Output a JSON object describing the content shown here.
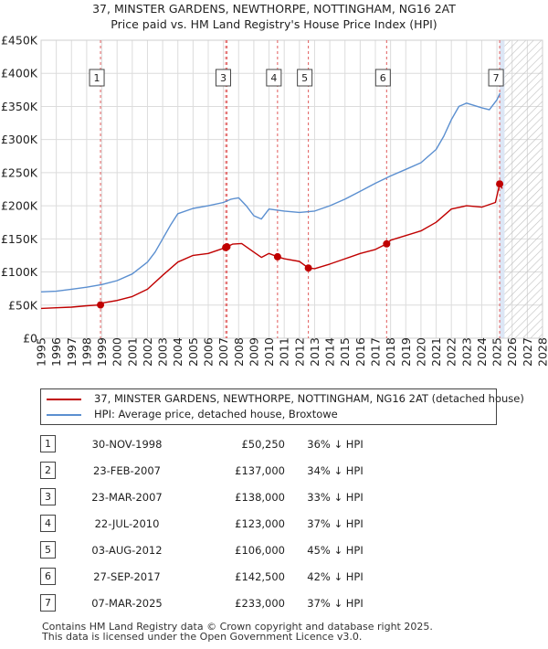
{
  "title": {
    "line1": "37, MINSTER GARDENS, NEWTHORPE, NOTTINGHAM, NG16 2AT",
    "line2": "Price paid vs. HM Land Registry's House Price Index (HPI)"
  },
  "colors": {
    "property": "#c00000",
    "hpi": "#5b8fd0",
    "marker_line": "#e05a5a",
    "future_hatch": "#b8b8b8",
    "shade": "#dce6f5"
  },
  "legend": {
    "property_label": "37, MINSTER GARDENS, NEWTHORPE, NOTTINGHAM, NG16 2AT (detached house)",
    "hpi_label": "HPI: Average price, detached house, Broxtowe"
  },
  "sales": [
    {
      "num": "1",
      "date": "30-NOV-1998",
      "price": "£50,250",
      "hpi_diff": "36% ↓ HPI"
    },
    {
      "num": "2",
      "date": "23-FEB-2007",
      "price": "£137,000",
      "hpi_diff": "34% ↓ HPI"
    },
    {
      "num": "3",
      "date": "23-MAR-2007",
      "price": "£138,000",
      "hpi_diff": "33% ↓ HPI"
    },
    {
      "num": "4",
      "date": "22-JUL-2010",
      "price": "£123,000",
      "hpi_diff": "37% ↓ HPI"
    },
    {
      "num": "5",
      "date": "03-AUG-2012",
      "price": "£106,000",
      "hpi_diff": "45% ↓ HPI"
    },
    {
      "num": "6",
      "date": "27-SEP-2017",
      "price": "£142,500",
      "hpi_diff": "42% ↓ HPI"
    },
    {
      "num": "7",
      "date": "07-MAR-2025",
      "price": "£233,000",
      "hpi_diff": "37% ↓ HPI"
    }
  ],
  "footer": {
    "line1": "Contains HM Land Registry data © Crown copyright and database right 2025.",
    "line2": "This data is licensed under the Open Government Licence v3.0."
  },
  "chart_data": {
    "type": "line",
    "title": "37, MINSTER GARDENS, NEWTHORPE, NOTTINGHAM, NG16 2AT — Price paid vs. HM Land Registry's House Price Index (HPI)",
    "xlabel": "",
    "ylabel": "",
    "xlim": [
      1995,
      2028
    ],
    "ylim": [
      0,
      450000
    ],
    "x_ticks": [
      1995,
      1996,
      1997,
      1998,
      1999,
      2000,
      2001,
      2002,
      2003,
      2004,
      2005,
      2006,
      2007,
      2008,
      2009,
      2010,
      2011,
      2012,
      2013,
      2014,
      2015,
      2016,
      2017,
      2018,
      2019,
      2020,
      2021,
      2022,
      2023,
      2024,
      2025,
      2026,
      2027,
      2028
    ],
    "y_ticks": [
      {
        "value": 0,
        "label": "£0"
      },
      {
        "value": 50000,
        "label": "£50K"
      },
      {
        "value": 100000,
        "label": "£100K"
      },
      {
        "value": 150000,
        "label": "£150K"
      },
      {
        "value": 200000,
        "label": "£200K"
      },
      {
        "value": 250000,
        "label": "£250K"
      },
      {
        "value": 300000,
        "label": "£300K"
      },
      {
        "value": 350000,
        "label": "£350K"
      },
      {
        "value": 400000,
        "label": "£400K"
      },
      {
        "value": 450000,
        "label": "£450K"
      }
    ],
    "grid": true,
    "future_from": 2025.5,
    "shaded_range": [
      2025.18,
      2025.5
    ],
    "series": [
      {
        "name": "HPI: Average price, detached house, Broxtowe",
        "color": "#5b8fd0",
        "x": [
          1995,
          1996,
          1997,
          1998,
          1999,
          2000,
          2001,
          2002,
          2002.5,
          2003,
          2003.5,
          2004,
          2005,
          2006,
          2007,
          2007.5,
          2008,
          2008.5,
          2009,
          2009.5,
          2010,
          2011,
          2012,
          2013,
          2014,
          2015,
          2016,
          2017,
          2018,
          2019,
          2020,
          2021,
          2021.5,
          2022,
          2022.5,
          2023,
          2024,
          2024.5,
          2025,
          2025.2
        ],
        "y": [
          70000,
          71000,
          74000,
          77000,
          81000,
          87000,
          97000,
          115000,
          130000,
          150000,
          170000,
          188000,
          196000,
          200000,
          205000,
          210000,
          212000,
          200000,
          185000,
          180000,
          195000,
          192000,
          190000,
          192000,
          200000,
          210000,
          222000,
          234000,
          245000,
          255000,
          265000,
          285000,
          305000,
          330000,
          350000,
          355000,
          348000,
          345000,
          360000,
          370000
        ]
      },
      {
        "name": "37, MINSTER GARDENS, NEWTHORPE, NOTTINGHAM, NG16 2AT (detached house)",
        "color": "#c00000",
        "x": [
          1995,
          1996,
          1997,
          1998,
          1998.91,
          1999,
          2000,
          2001,
          2002,
          2003,
          2004,
          2005,
          2006,
          2007.15,
          2007.23,
          2007.6,
          2008.2,
          2009,
          2009.5,
          2010.0,
          2010.56,
          2011,
          2012,
          2012.59,
          2013,
          2014,
          2015,
          2016,
          2017,
          2017.74,
          2018,
          2019,
          2020,
          2021,
          2022,
          2023,
          2024,
          2024.9,
          2025.18,
          2025.35
        ],
        "y": [
          45000,
          46000,
          47000,
          49000,
          50250,
          53000,
          57000,
          63000,
          74000,
          95000,
          115000,
          125000,
          128000,
          137000,
          138000,
          142000,
          143000,
          130000,
          122000,
          128000,
          123000,
          120000,
          116000,
          106000,
          105000,
          112000,
          120000,
          128000,
          134000,
          142500,
          148000,
          155000,
          162000,
          175000,
          195000,
          200000,
          198000,
          205000,
          233000,
          226000
        ]
      }
    ],
    "sale_markers": [
      {
        "label": "1",
        "x": 1998.91,
        "y": 50250
      },
      {
        "label": "2",
        "x": 2007.15,
        "y": 137000
      },
      {
        "label": "3",
        "x": 2007.23,
        "y": 138000
      },
      {
        "label": "4",
        "x": 2010.56,
        "y": 123000
      },
      {
        "label": "5",
        "x": 2012.59,
        "y": 106000
      },
      {
        "label": "6",
        "x": 2017.74,
        "y": 142500
      },
      {
        "label": "7",
        "x": 2025.18,
        "y": 233000
      }
    ],
    "boxed_labels": [
      "1",
      "3",
      "4",
      "5",
      "6",
      "7"
    ]
  }
}
